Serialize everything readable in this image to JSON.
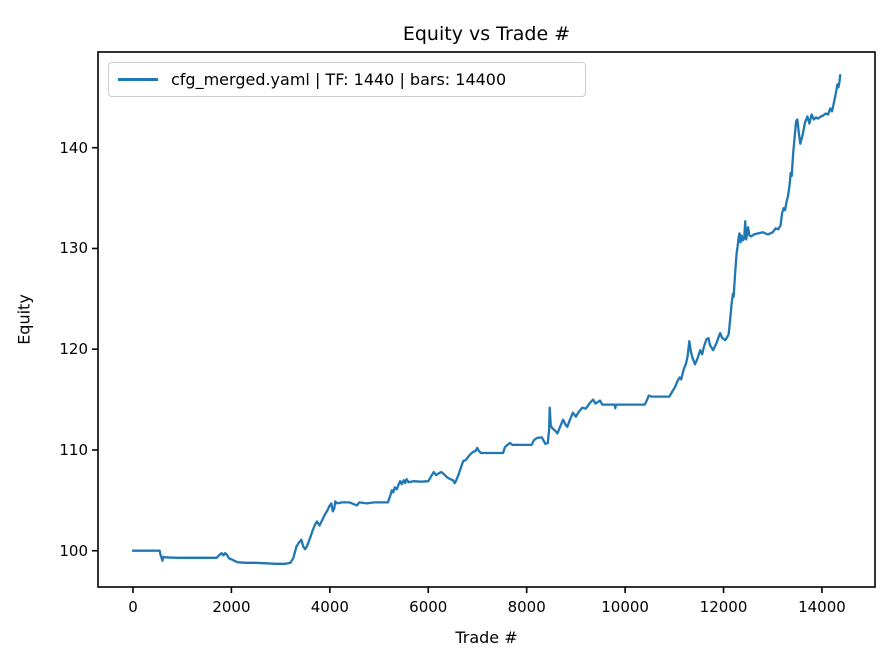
{
  "chart_data": {
    "type": "line",
    "title": "Equity vs Trade #",
    "xlabel": "Trade #",
    "ylabel": "Equity",
    "grid": false,
    "legend_position": "upper left",
    "legend": [
      {
        "label": "cfg_merged.yaml | TF: 1440 | bars: 14400",
        "color": "#1f77b4"
      }
    ],
    "line_color": "#1f77b4",
    "axis_color": "#000000",
    "background_color": "#ffffff",
    "xlim": [
      -711,
      15078
    ],
    "ylim": [
      96.4,
      149.5
    ],
    "xticks": [
      0,
      2000,
      4000,
      6000,
      8000,
      10000,
      12000,
      14000
    ],
    "yticks": [
      100,
      110,
      120,
      130,
      140
    ],
    "series": [
      {
        "name": "cfg_merged.yaml | TF: 1440 | bars: 14400",
        "points": [
          [
            0,
            100.0
          ],
          [
            300,
            100.0
          ],
          [
            540,
            100.0
          ],
          [
            560,
            99.6
          ],
          [
            600,
            99.0
          ],
          [
            615,
            99.4
          ],
          [
            650,
            99.35
          ],
          [
            900,
            99.3
          ],
          [
            1200,
            99.3
          ],
          [
            1500,
            99.3
          ],
          [
            1700,
            99.3
          ],
          [
            1760,
            99.6
          ],
          [
            1800,
            99.75
          ],
          [
            1840,
            99.55
          ],
          [
            1870,
            99.75
          ],
          [
            1910,
            99.6
          ],
          [
            1950,
            99.25
          ],
          [
            2000,
            99.15
          ],
          [
            2060,
            99.0
          ],
          [
            2130,
            98.85
          ],
          [
            2300,
            98.8
          ],
          [
            2500,
            98.8
          ],
          [
            2700,
            98.75
          ],
          [
            2900,
            98.7
          ],
          [
            3100,
            98.7
          ],
          [
            3200,
            98.8
          ],
          [
            3260,
            99.3
          ],
          [
            3320,
            100.4
          ],
          [
            3370,
            100.8
          ],
          [
            3420,
            101.1
          ],
          [
            3460,
            100.4
          ],
          [
            3500,
            100.15
          ],
          [
            3540,
            100.5
          ],
          [
            3600,
            101.3
          ],
          [
            3650,
            102.0
          ],
          [
            3700,
            102.6
          ],
          [
            3740,
            102.9
          ],
          [
            3790,
            102.5
          ],
          [
            3840,
            103.0
          ],
          [
            3900,
            103.6
          ],
          [
            3950,
            104.0
          ],
          [
            4000,
            104.5
          ],
          [
            4030,
            104.7
          ],
          [
            4060,
            103.9
          ],
          [
            4090,
            104.2
          ],
          [
            4110,
            104.9
          ],
          [
            4150,
            104.7
          ],
          [
            4250,
            104.8
          ],
          [
            4400,
            104.8
          ],
          [
            4550,
            104.5
          ],
          [
            4600,
            104.8
          ],
          [
            4750,
            104.7
          ],
          [
            4900,
            104.8
          ],
          [
            5050,
            104.8
          ],
          [
            5180,
            104.8
          ],
          [
            5230,
            105.5
          ],
          [
            5260,
            106.0
          ],
          [
            5290,
            105.8
          ],
          [
            5320,
            106.3
          ],
          [
            5360,
            106.1
          ],
          [
            5400,
            106.6
          ],
          [
            5430,
            106.9
          ],
          [
            5460,
            106.6
          ],
          [
            5500,
            107.0
          ],
          [
            5530,
            106.7
          ],
          [
            5560,
            107.1
          ],
          [
            5600,
            106.8
          ],
          [
            5700,
            106.9
          ],
          [
            5850,
            106.85
          ],
          [
            6000,
            106.9
          ],
          [
            6060,
            107.4
          ],
          [
            6110,
            107.8
          ],
          [
            6160,
            107.5
          ],
          [
            6220,
            107.7
          ],
          [
            6270,
            107.8
          ],
          [
            6320,
            107.6
          ],
          [
            6380,
            107.3
          ],
          [
            6450,
            107.1
          ],
          [
            6500,
            107.0
          ],
          [
            6540,
            106.7
          ],
          [
            6570,
            107.0
          ],
          [
            6610,
            107.5
          ],
          [
            6660,
            108.2
          ],
          [
            6710,
            108.9
          ],
          [
            6760,
            109.0
          ],
          [
            6810,
            109.3
          ],
          [
            6860,
            109.6
          ],
          [
            6910,
            109.8
          ],
          [
            6960,
            109.9
          ],
          [
            6995,
            110.2
          ],
          [
            7030,
            109.9
          ],
          [
            7070,
            109.7
          ],
          [
            7200,
            109.7
          ],
          [
            7350,
            109.7
          ],
          [
            7520,
            109.7
          ],
          [
            7560,
            110.3
          ],
          [
            7610,
            110.5
          ],
          [
            7660,
            110.7
          ],
          [
            7710,
            110.5
          ],
          [
            7900,
            110.5
          ],
          [
            8100,
            110.5
          ],
          [
            8150,
            111.0
          ],
          [
            8210,
            111.2
          ],
          [
            8310,
            111.25
          ],
          [
            8380,
            110.6
          ],
          [
            8430,
            110.7
          ],
          [
            8455,
            112.0
          ],
          [
            8468,
            114.2
          ],
          [
            8490,
            112.4
          ],
          [
            8530,
            112.1
          ],
          [
            8580,
            111.9
          ],
          [
            8625,
            111.65
          ],
          [
            8680,
            112.3
          ],
          [
            8740,
            113.0
          ],
          [
            8790,
            112.5
          ],
          [
            8825,
            112.3
          ],
          [
            8870,
            112.9
          ],
          [
            8940,
            113.7
          ],
          [
            9000,
            113.3
          ],
          [
            9060,
            113.8
          ],
          [
            9130,
            114.2
          ],
          [
            9200,
            114.1
          ],
          [
            9290,
            114.7
          ],
          [
            9350,
            115.0
          ],
          [
            9400,
            114.6
          ],
          [
            9490,
            114.9
          ],
          [
            9535,
            114.5
          ],
          [
            9700,
            114.5
          ],
          [
            9785,
            114.5
          ],
          [
            9800,
            114.15
          ],
          [
            9815,
            114.5
          ],
          [
            10000,
            114.5
          ],
          [
            10200,
            114.5
          ],
          [
            10400,
            114.5
          ],
          [
            10450,
            115.0
          ],
          [
            10480,
            115.4
          ],
          [
            10530,
            115.3
          ],
          [
            10700,
            115.3
          ],
          [
            10900,
            115.3
          ],
          [
            10960,
            115.8
          ],
          [
            11010,
            116.2
          ],
          [
            11060,
            116.8
          ],
          [
            11110,
            117.2
          ],
          [
            11140,
            117.0
          ],
          [
            11190,
            118.0
          ],
          [
            11240,
            118.6
          ],
          [
            11270,
            119.3
          ],
          [
            11305,
            120.8
          ],
          [
            11335,
            119.8
          ],
          [
            11365,
            119.2
          ],
          [
            11420,
            118.5
          ],
          [
            11465,
            119.0
          ],
          [
            11525,
            119.9
          ],
          [
            11565,
            119.5
          ],
          [
            11605,
            120.3
          ],
          [
            11655,
            121.0
          ],
          [
            11695,
            121.1
          ],
          [
            11725,
            120.4
          ],
          [
            11790,
            119.9
          ],
          [
            11855,
            120.6
          ],
          [
            11930,
            121.6
          ],
          [
            11975,
            121.1
          ],
          [
            12035,
            120.9
          ],
          [
            12075,
            121.2
          ],
          [
            12105,
            121.5
          ],
          [
            12135,
            123.0
          ],
          [
            12165,
            124.5
          ],
          [
            12190,
            125.5
          ],
          [
            12205,
            125.2
          ],
          [
            12235,
            127.5
          ],
          [
            12265,
            129.5
          ],
          [
            12285,
            130.2
          ],
          [
            12305,
            131.0
          ],
          [
            12325,
            131.5
          ],
          [
            12345,
            130.6
          ],
          [
            12365,
            131.3
          ],
          [
            12390,
            130.8
          ],
          [
            12420,
            131.0
          ],
          [
            12440,
            132.7
          ],
          [
            12460,
            130.9
          ],
          [
            12480,
            131.5
          ],
          [
            12500,
            132.1
          ],
          [
            12525,
            131.3
          ],
          [
            12560,
            131.2
          ],
          [
            12620,
            131.4
          ],
          [
            12700,
            131.5
          ],
          [
            12800,
            131.6
          ],
          [
            12900,
            131.4
          ],
          [
            13000,
            131.6
          ],
          [
            13060,
            132.0
          ],
          [
            13110,
            131.9
          ],
          [
            13160,
            132.3
          ],
          [
            13190,
            133.5
          ],
          [
            13220,
            134.0
          ],
          [
            13250,
            133.8
          ],
          [
            13280,
            134.6
          ],
          [
            13310,
            135.2
          ],
          [
            13340,
            136.2
          ],
          [
            13365,
            137.5
          ],
          [
            13385,
            137.2
          ],
          [
            13415,
            139.5
          ],
          [
            13445,
            141.0
          ],
          [
            13475,
            142.6
          ],
          [
            13500,
            142.8
          ],
          [
            13530,
            141.5
          ],
          [
            13560,
            140.4
          ],
          [
            13605,
            141.2
          ],
          [
            13655,
            142.5
          ],
          [
            13705,
            143.1
          ],
          [
            13745,
            142.4
          ],
          [
            13790,
            143.3
          ],
          [
            13835,
            142.8
          ],
          [
            13875,
            143.0
          ],
          [
            13925,
            142.9
          ],
          [
            13975,
            143.1
          ],
          [
            14025,
            143.2
          ],
          [
            14075,
            143.4
          ],
          [
            14125,
            143.3
          ],
          [
            14170,
            143.9
          ],
          [
            14205,
            143.6
          ],
          [
            14245,
            144.5
          ],
          [
            14285,
            145.5
          ],
          [
            14315,
            146.3
          ],
          [
            14335,
            146.0
          ],
          [
            14355,
            146.5
          ],
          [
            14370,
            147.2
          ]
        ]
      }
    ]
  }
}
